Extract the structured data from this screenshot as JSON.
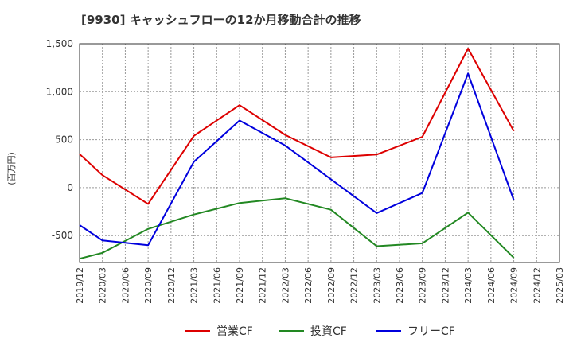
{
  "chart_data": {
    "type": "line",
    "title": "[9930]  キャッシュフローの12か月移動合計の推移",
    "xlabel": "",
    "ylabel": "(百万円)",
    "ylim": [
      -780,
      1500
    ],
    "yticks": [
      -500,
      0,
      500,
      1000,
      1500
    ],
    "ytick_labels": [
      "-500",
      "0",
      "500",
      "1,000",
      "1,500"
    ],
    "x_tick_labels": [
      "2019/12",
      "2020/03",
      "2020/06",
      "2020/09",
      "2020/12",
      "2021/03",
      "2021/06",
      "2021/09",
      "2021/12",
      "2022/03",
      "2022/06",
      "2022/09",
      "2022/12",
      "2023/03",
      "2023/06",
      "2023/09",
      "2023/12",
      "2024/03",
      "2024/06",
      "2024/09",
      "2024/12",
      "2025/03"
    ],
    "grid": true,
    "legend": "bottom",
    "series": [
      {
        "name": "営業CF",
        "color": "#dd0000",
        "values": [
          350,
          130,
          null,
          -170,
          null,
          540,
          null,
          860,
          null,
          550,
          null,
          315,
          null,
          345,
          null,
          530,
          null,
          1450,
          null,
          590,
          null,
          null
        ]
      },
      {
        "name": "投資CF",
        "color": "#228822",
        "values": [
          -740,
          -680,
          null,
          -430,
          null,
          -280,
          null,
          -160,
          null,
          -110,
          null,
          -230,
          null,
          -610,
          null,
          -580,
          null,
          -260,
          null,
          -730,
          null,
          null
        ]
      },
      {
        "name": "フリーCF",
        "color": "#0000dd",
        "values": [
          -390,
          -550,
          null,
          -600,
          null,
          270,
          null,
          700,
          null,
          440,
          null,
          null,
          null,
          -265,
          null,
          -55,
          null,
          1190,
          null,
          -130,
          null,
          null
        ]
      }
    ]
  }
}
